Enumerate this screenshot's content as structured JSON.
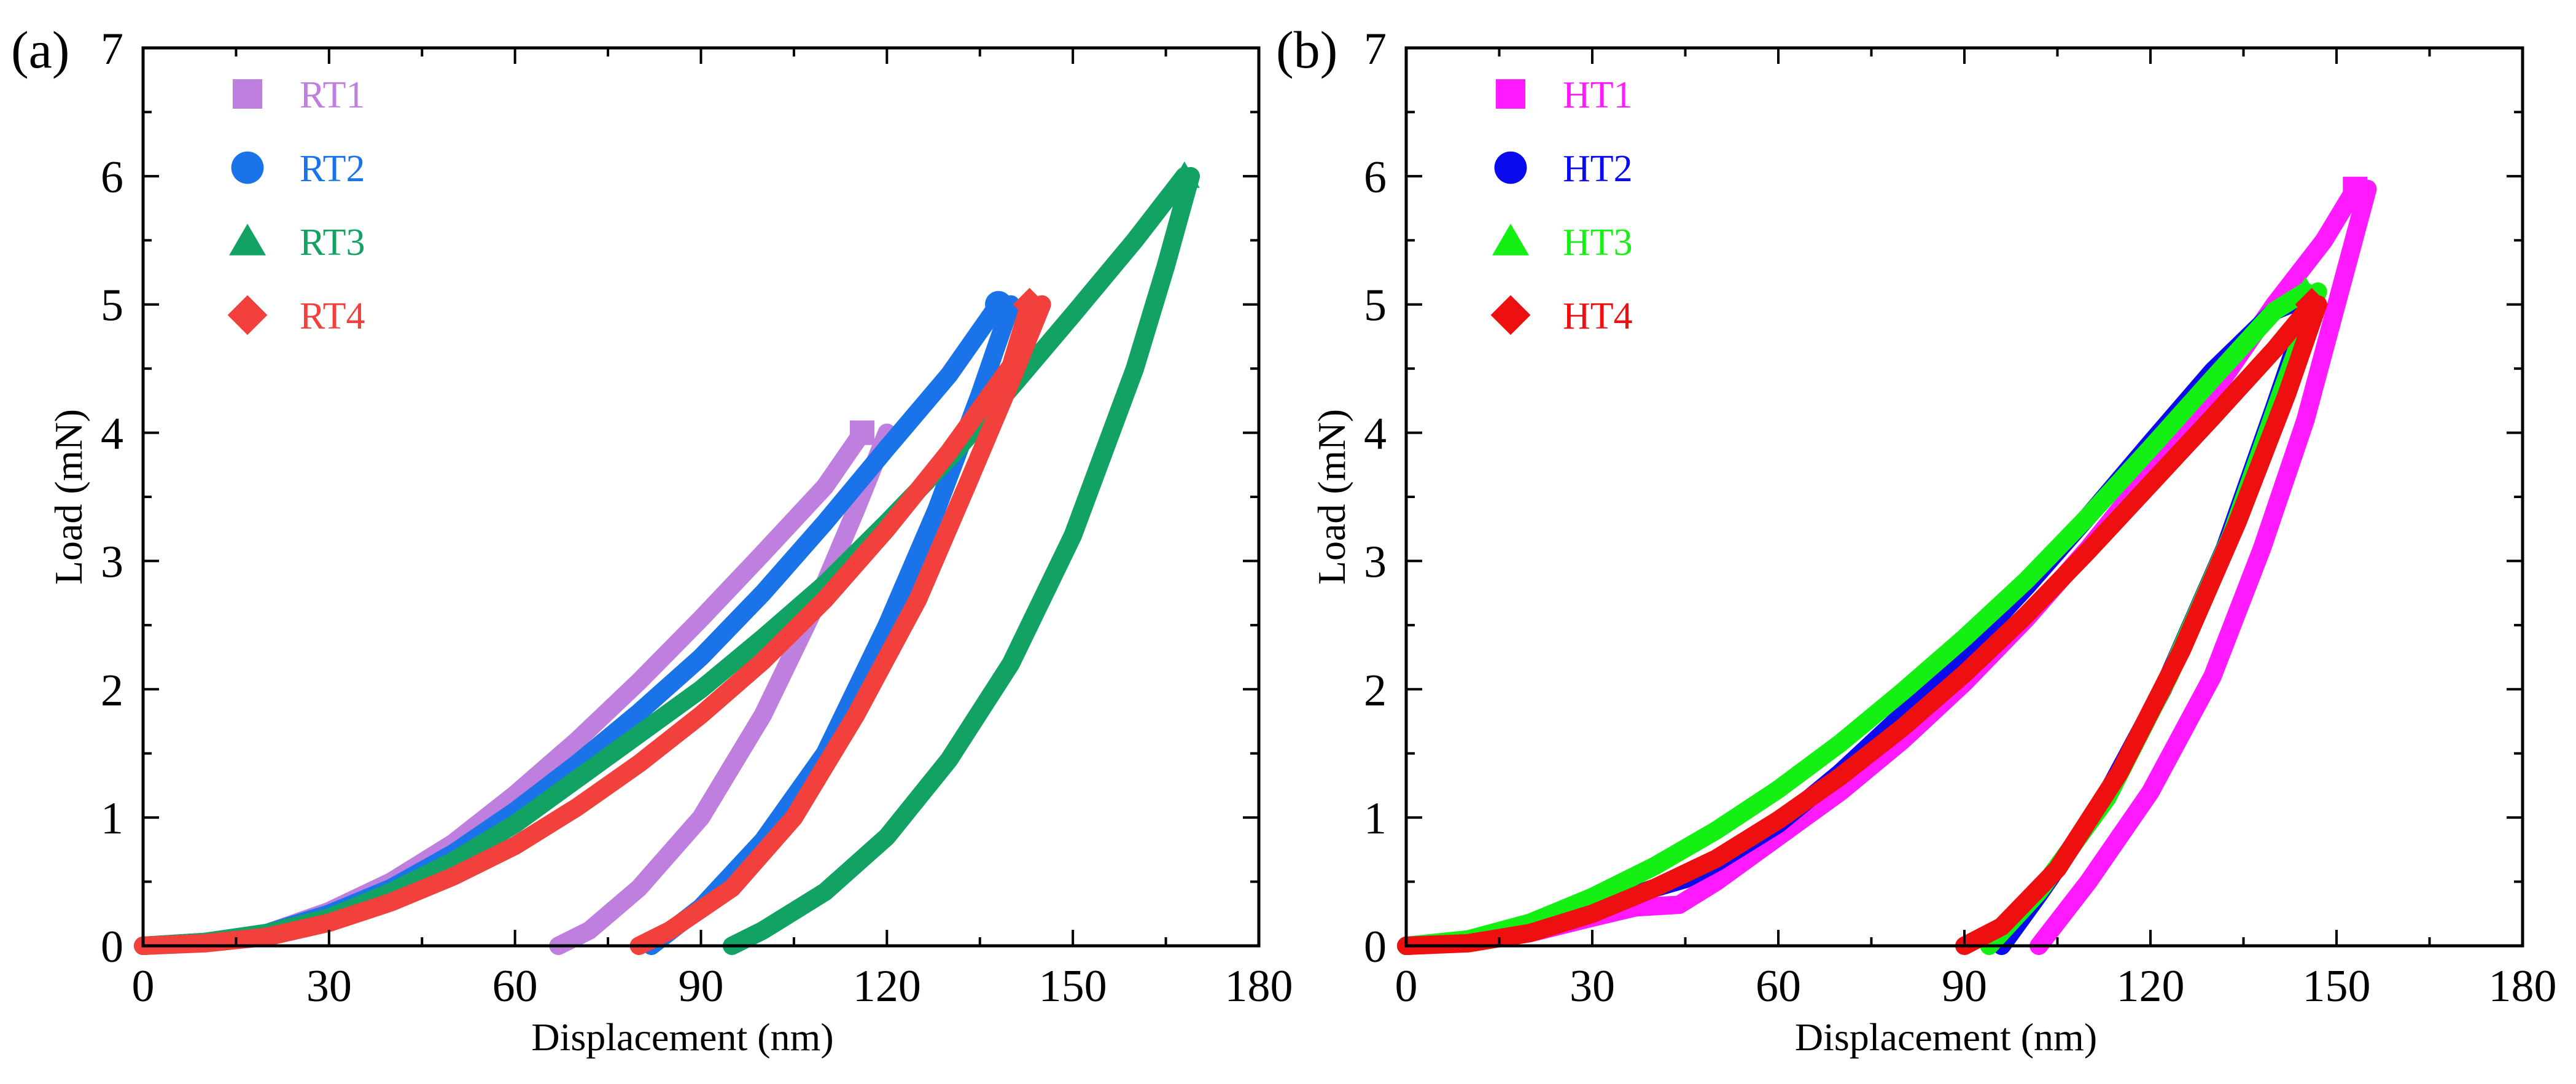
{
  "chart_data": [
    {
      "type": "line",
      "panel_label": "(a)",
      "xlabel": "Displacement (nm)",
      "ylabel": "Load (mN)",
      "xlim": [
        0,
        180
      ],
      "ylim": [
        0,
        7
      ],
      "x_ticks": [
        "0",
        "30",
        "60",
        "90",
        "120",
        "150",
        "180"
      ],
      "y_ticks": [
        "0",
        "1",
        "2",
        "3",
        "4",
        "5",
        "6",
        "7"
      ],
      "legend_position": "top-left",
      "series": [
        {
          "name": "RT1",
          "marker": "square",
          "color": "#bf7fdf",
          "loading": [
            [
              0,
              0
            ],
            [
              10,
              0.03
            ],
            [
              20,
              0.1
            ],
            [
              30,
              0.27
            ],
            [
              40,
              0.5
            ],
            [
              50,
              0.8
            ],
            [
              60,
              1.18
            ],
            [
              70,
              1.6
            ],
            [
              80,
              2.06
            ],
            [
              90,
              2.55
            ],
            [
              100,
              3.06
            ],
            [
              110,
              3.58
            ],
            [
              116,
              4.0
            ]
          ],
          "unloading": [
            [
              120,
              4.0
            ],
            [
              115,
              3.4
            ],
            [
              108,
              2.6
            ],
            [
              100,
              1.8
            ],
            [
              90,
              1.0
            ],
            [
              80,
              0.45
            ],
            [
              72,
              0.12
            ],
            [
              67,
              0
            ]
          ]
        },
        {
          "name": "RT2",
          "marker": "circle",
          "color": "#1a73e8",
          "loading": [
            [
              0,
              0
            ],
            [
              10,
              0.03
            ],
            [
              20,
              0.1
            ],
            [
              30,
              0.25
            ],
            [
              40,
              0.45
            ],
            [
              50,
              0.72
            ],
            [
              60,
              1.05
            ],
            [
              70,
              1.42
            ],
            [
              80,
              1.82
            ],
            [
              90,
              2.25
            ],
            [
              100,
              2.75
            ],
            [
              110,
              3.3
            ],
            [
              120,
              3.88
            ],
            [
              130,
              4.45
            ],
            [
              138,
              5.0
            ]
          ],
          "unloading": [
            [
              140,
              5.0
            ],
            [
              135,
              4.3
            ],
            [
              128,
              3.4
            ],
            [
              120,
              2.5
            ],
            [
              110,
              1.5
            ],
            [
              100,
              0.82
            ],
            [
              90,
              0.3
            ],
            [
              82,
              0
            ]
          ]
        },
        {
          "name": "RT3",
          "marker": "triangle",
          "color": "#12a263",
          "loading": [
            [
              0,
              0
            ],
            [
              10,
              0.03
            ],
            [
              20,
              0.1
            ],
            [
              30,
              0.22
            ],
            [
              40,
              0.42
            ],
            [
              50,
              0.66
            ],
            [
              60,
              0.95
            ],
            [
              70,
              1.3
            ],
            [
              80,
              1.65
            ],
            [
              90,
              2.0
            ],
            [
              100,
              2.4
            ],
            [
              110,
              2.82
            ],
            [
              120,
              3.3
            ],
            [
              130,
              3.8
            ],
            [
              140,
              4.35
            ],
            [
              150,
              4.92
            ],
            [
              160,
              5.5
            ],
            [
              168,
              6.0
            ]
          ],
          "unloading": [
            [
              169,
              6.0
            ],
            [
              165,
              5.3
            ],
            [
              160,
              4.5
            ],
            [
              150,
              3.2
            ],
            [
              140,
              2.2
            ],
            [
              130,
              1.45
            ],
            [
              120,
              0.85
            ],
            [
              110,
              0.42
            ],
            [
              100,
              0.12
            ],
            [
              95,
              0
            ]
          ]
        },
        {
          "name": "RT4",
          "marker": "diamond",
          "color": "#f2403c",
          "loading": [
            [
              0,
              0
            ],
            [
              10,
              0.02
            ],
            [
              20,
              0.07
            ],
            [
              30,
              0.18
            ],
            [
              40,
              0.34
            ],
            [
              50,
              0.54
            ],
            [
              60,
              0.78
            ],
            [
              70,
              1.08
            ],
            [
              80,
              1.42
            ],
            [
              90,
              1.8
            ],
            [
              100,
              2.22
            ],
            [
              110,
              2.7
            ],
            [
              120,
              3.25
            ],
            [
              130,
              3.85
            ],
            [
              140,
              4.52
            ],
            [
              143,
              5.0
            ]
          ],
          "unloading": [
            [
              145,
              5.0
            ],
            [
              140,
              4.4
            ],
            [
              133,
              3.6
            ],
            [
              125,
              2.7
            ],
            [
              115,
              1.8
            ],
            [
              105,
              1.0
            ],
            [
              95,
              0.45
            ],
            [
              85,
              0.12
            ],
            [
              80,
              0
            ]
          ]
        }
      ]
    },
    {
      "type": "line",
      "panel_label": "(b)",
      "xlabel": "Displacement (nm)",
      "ylabel": "Load (mN)",
      "xlim": [
        0,
        180
      ],
      "ylim": [
        0,
        7
      ],
      "x_ticks": [
        "0",
        "30",
        "60",
        "90",
        "120",
        "150",
        "180"
      ],
      "y_ticks": [
        "0",
        "1",
        "2",
        "3",
        "4",
        "5",
        "6",
        "7"
      ],
      "legend_position": "top-left",
      "series": [
        {
          "name": "HT1",
          "marker": "square",
          "color": "#ff1aff",
          "loading": [
            [
              0,
              0
            ],
            [
              10,
              0.03
            ],
            [
              20,
              0.1
            ],
            [
              30,
              0.22
            ],
            [
              37,
              0.3
            ],
            [
              44,
              0.32
            ],
            [
              50,
              0.5
            ],
            [
              60,
              0.85
            ],
            [
              70,
              1.2
            ],
            [
              80,
              1.6
            ],
            [
              90,
              2.05
            ],
            [
              100,
              2.55
            ],
            [
              110,
              3.1
            ],
            [
              120,
              3.7
            ],
            [
              130,
              4.3
            ],
            [
              140,
              5.0
            ],
            [
              148,
              5.5
            ],
            [
              153,
              5.9
            ]
          ],
          "unloading": [
            [
              155,
              5.9
            ],
            [
              150,
              5.0
            ],
            [
              145,
              4.1
            ],
            [
              138,
              3.1
            ],
            [
              130,
              2.1
            ],
            [
              120,
              1.2
            ],
            [
              110,
              0.5
            ],
            [
              102,
              0
            ]
          ]
        },
        {
          "name": "HT2",
          "marker": "circle",
          "color": "#0a0aee",
          "loading": [
            [
              0,
              0
            ],
            [
              10,
              0.03
            ],
            [
              20,
              0.12
            ],
            [
              30,
              0.28
            ],
            [
              40,
              0.45
            ],
            [
              45,
              0.52
            ],
            [
              50,
              0.65
            ],
            [
              60,
              0.95
            ],
            [
              70,
              1.35
            ],
            [
              80,
              1.8
            ],
            [
              90,
              2.28
            ],
            [
              100,
              2.8
            ],
            [
              110,
              3.35
            ],
            [
              120,
              3.92
            ],
            [
              130,
              4.48
            ],
            [
              140,
              4.95
            ],
            [
              145,
              5.05
            ]
          ],
          "unloading": [
            [
              146,
              5.05
            ],
            [
              140,
              4.2
            ],
            [
              132,
              3.1
            ],
            [
              122,
              2.0
            ],
            [
              112,
              1.1
            ],
            [
              102,
              0.4
            ],
            [
              96,
              0
            ]
          ]
        },
        {
          "name": "HT3",
          "marker": "triangle",
          "color": "#14f014",
          "loading": [
            [
              0,
              0
            ],
            [
              10,
              0.05
            ],
            [
              20,
              0.18
            ],
            [
              30,
              0.38
            ],
            [
              40,
              0.62
            ],
            [
              50,
              0.9
            ],
            [
              60,
              1.22
            ],
            [
              70,
              1.58
            ],
            [
              80,
              1.98
            ],
            [
              90,
              2.4
            ],
            [
              100,
              2.85
            ],
            [
              110,
              3.35
            ],
            [
              120,
              3.88
            ],
            [
              130,
              4.42
            ],
            [
              140,
              4.95
            ],
            [
              145,
              5.1
            ]
          ],
          "unloading": [
            [
              147,
              5.1
            ],
            [
              141,
              4.3
            ],
            [
              133,
              3.2
            ],
            [
              123,
              2.1
            ],
            [
              113,
              1.15
            ],
            [
              102,
              0.42
            ],
            [
              94,
              0
            ]
          ]
        },
        {
          "name": "HT4",
          "marker": "diamond",
          "color": "#ee1010",
          "loading": [
            [
              0,
              0
            ],
            [
              10,
              0.02
            ],
            [
              20,
              0.1
            ],
            [
              30,
              0.25
            ],
            [
              40,
              0.45
            ],
            [
              50,
              0.68
            ],
            [
              60,
              0.98
            ],
            [
              70,
              1.32
            ],
            [
              80,
              1.7
            ],
            [
              90,
              2.12
            ],
            [
              100,
              2.58
            ],
            [
              110,
              3.08
            ],
            [
              120,
              3.6
            ],
            [
              130,
              4.12
            ],
            [
              140,
              4.65
            ],
            [
              146,
              5.0
            ]
          ],
          "unloading": [
            [
              147,
              5.0
            ],
            [
              142,
              4.3
            ],
            [
              134,
              3.3
            ],
            [
              125,
              2.3
            ],
            [
              115,
              1.35
            ],
            [
              105,
              0.6
            ],
            [
              96,
              0.15
            ],
            [
              90,
              0
            ]
          ]
        }
      ]
    }
  ]
}
